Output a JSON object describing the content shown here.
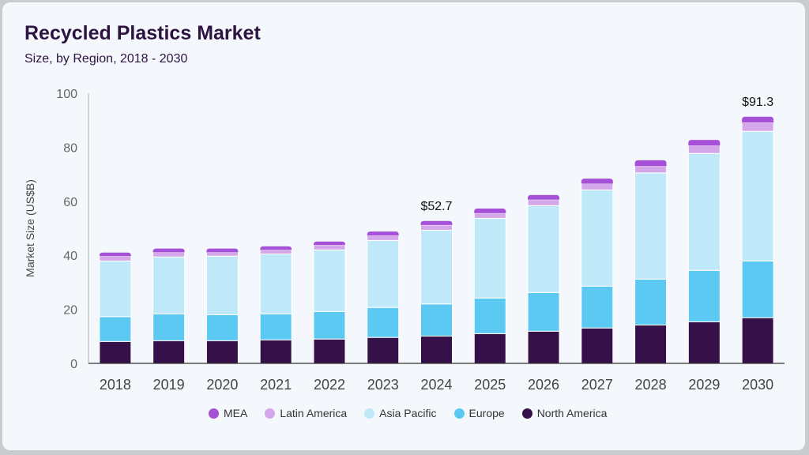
{
  "chart_data": {
    "type": "bar",
    "stacked": true,
    "title": "Recycled Plastics Market",
    "subtitle": "Size, by Region, 2018 - 2030",
    "xlabel": "",
    "ylabel": "Market Size (US$B)",
    "ylim": [
      0,
      100
    ],
    "yticks": [
      0,
      20,
      40,
      60,
      80,
      100
    ],
    "grid": false,
    "legend_placement": "bottom",
    "categories": [
      "2018",
      "2019",
      "2020",
      "2021",
      "2022",
      "2023",
      "2024",
      "2025",
      "2026",
      "2027",
      "2028",
      "2029",
      "2030"
    ],
    "series": [
      {
        "name": "North America",
        "color": "#361049",
        "values": [
          8.1,
          8.4,
          8.4,
          8.7,
          9.0,
          9.6,
          10.1,
          11.0,
          11.9,
          13.1,
          14.2,
          15.4,
          16.9
        ]
      },
      {
        "name": "Europe",
        "color": "#5bc9f2",
        "values": [
          9.2,
          9.9,
          9.6,
          9.6,
          10.2,
          11.1,
          11.9,
          13.2,
          14.3,
          15.5,
          17.0,
          19.0,
          21.0
        ]
      },
      {
        "name": "Asia Pacific",
        "color": "#bfe9f9",
        "values": [
          20.6,
          21.1,
          21.7,
          22.2,
          22.8,
          24.8,
          27.3,
          29.5,
          32.2,
          35.6,
          39.3,
          43.3,
          48.0
        ]
      },
      {
        "name": "Latin America",
        "color": "#d4a6ea",
        "values": [
          1.8,
          1.7,
          1.4,
          1.5,
          1.8,
          1.8,
          1.9,
          1.9,
          2.2,
          2.3,
          2.5,
          2.9,
          3.2
        ]
      },
      {
        "name": "MEA",
        "color": "#a550d6",
        "values": [
          1.3,
          1.4,
          1.4,
          1.3,
          1.3,
          1.5,
          1.5,
          1.7,
          1.7,
          1.9,
          2.2,
          2.1,
          2.2
        ]
      }
    ],
    "annotations": [
      {
        "category": "2024",
        "text": "$52.7"
      },
      {
        "category": "2030",
        "text": "$91.3"
      }
    ],
    "legend_order": [
      "MEA",
      "Latin America",
      "Asia Pacific",
      "Europe",
      "North America"
    ]
  }
}
